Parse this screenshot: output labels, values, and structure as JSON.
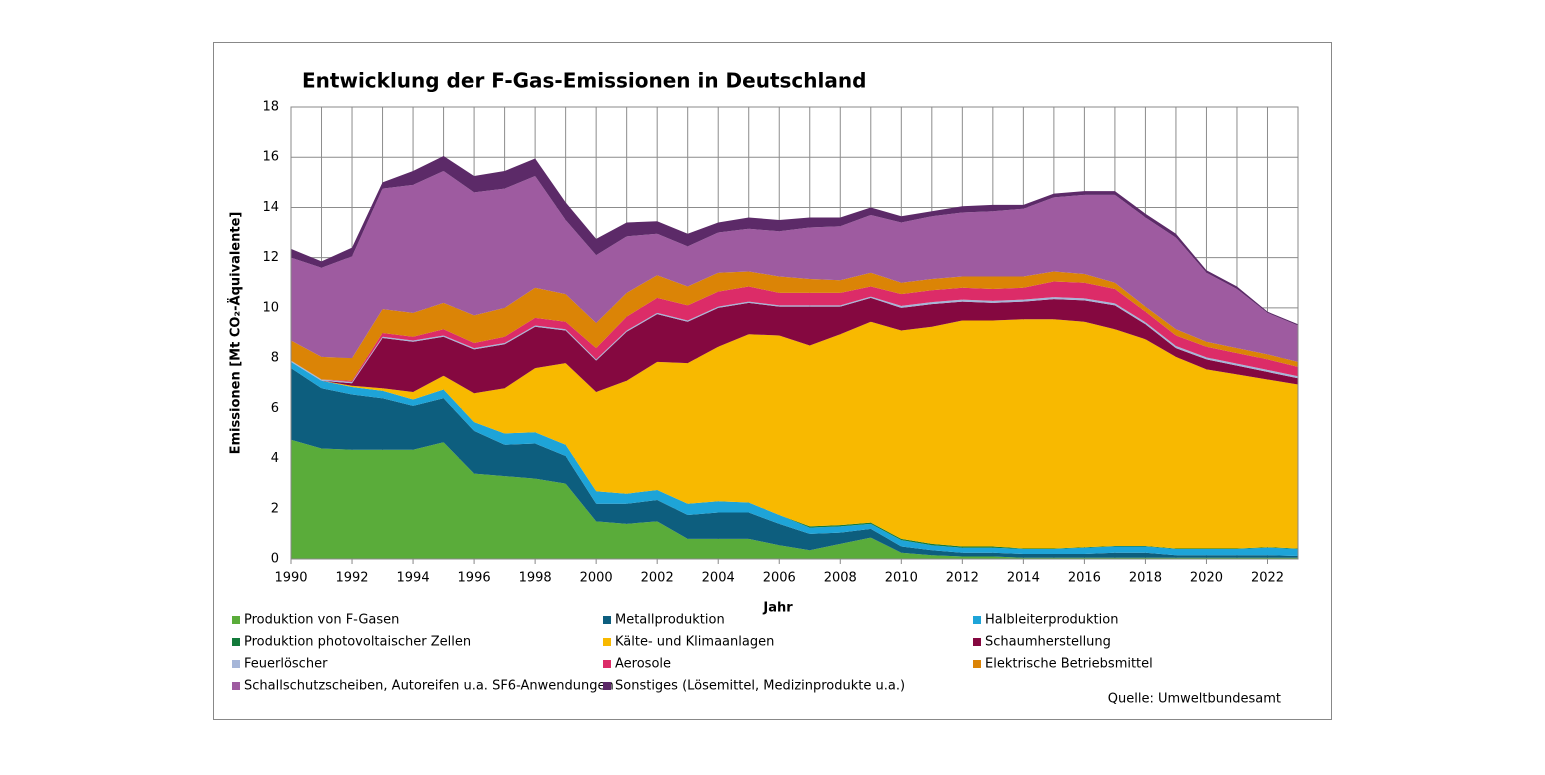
{
  "chart_data": {
    "type": "stacked-area",
    "title": "Entwicklung der F-Gas-Emissionen in Deutschland",
    "x_label": "Jahr",
    "y_label": "Emissionen [Mt CO₂-Äquivalente]",
    "source": "Quelle: Umweltbundesamt",
    "x": [
      1990,
      1991,
      1992,
      1993,
      1994,
      1995,
      1996,
      1997,
      1998,
      1999,
      2000,
      2001,
      2002,
      2003,
      2004,
      2005,
      2006,
      2007,
      2008,
      2009,
      2010,
      2011,
      2012,
      2013,
      2014,
      2015,
      2016,
      2017,
      2018,
      2019,
      2020,
      2021,
      2022,
      2023
    ],
    "xlim": [
      1990,
      2023
    ],
    "xticks": [
      1990,
      1992,
      1994,
      1996,
      1998,
      2000,
      2002,
      2004,
      2006,
      2008,
      2010,
      2012,
      2014,
      2016,
      2018,
      2020,
      2022
    ],
    "ylim": [
      0,
      18
    ],
    "yticks": [
      0,
      2,
      4,
      6,
      8,
      10,
      12,
      14,
      16,
      18
    ],
    "grid": true,
    "series": [
      {
        "name": "Produktion von F-Gasen",
        "color": "#5aac3a",
        "values": [
          4.75,
          4.4,
          4.35,
          4.35,
          4.35,
          4.65,
          3.4,
          3.3,
          3.2,
          3.0,
          1.5,
          1.4,
          1.5,
          0.8,
          0.8,
          0.8,
          0.55,
          0.35,
          0.6,
          0.85,
          0.25,
          0.15,
          0.1,
          0.1,
          0.05,
          0.05,
          0.05,
          0.05,
          0.05,
          0.05,
          0.05,
          0.05,
          0.05,
          0.05
        ]
      },
      {
        "name": "Metallproduktion",
        "color": "#0d5e7e",
        "values": [
          2.85,
          2.4,
          2.2,
          2.05,
          1.75,
          1.75,
          1.7,
          1.25,
          1.4,
          1.1,
          0.7,
          0.8,
          0.85,
          0.95,
          1.05,
          1.05,
          0.85,
          0.65,
          0.45,
          0.35,
          0.25,
          0.2,
          0.15,
          0.15,
          0.15,
          0.15,
          0.15,
          0.2,
          0.2,
          0.1,
          0.1,
          0.1,
          0.1,
          0.07
        ]
      },
      {
        "name": "Halbleiterproduktion",
        "color": "#1ea4d8",
        "values": [
          0.25,
          0.3,
          0.3,
          0.3,
          0.25,
          0.35,
          0.35,
          0.45,
          0.45,
          0.45,
          0.5,
          0.4,
          0.4,
          0.45,
          0.45,
          0.4,
          0.35,
          0.25,
          0.25,
          0.2,
          0.25,
          0.2,
          0.2,
          0.2,
          0.2,
          0.2,
          0.25,
          0.25,
          0.25,
          0.25,
          0.25,
          0.25,
          0.3,
          0.28
        ]
      },
      {
        "name": "Produktion photovoltaischer Zellen",
        "color": "#127a3a",
        "values": [
          0,
          0,
          0,
          0,
          0,
          0,
          0,
          0,
          0,
          0,
          0,
          0,
          0,
          0,
          0,
          0,
          0,
          0.05,
          0.05,
          0.05,
          0.05,
          0.05,
          0.05,
          0.05,
          0.02,
          0.02,
          0.02,
          0.02,
          0.02,
          0.02,
          0.02,
          0.02,
          0.02,
          0.02
        ]
      },
      {
        "name": "Kälte- und Klimaanlagen",
        "color": "#f8b900",
        "values": [
          0,
          0,
          0.05,
          0.1,
          0.3,
          0.55,
          1.15,
          1.8,
          2.55,
          3.25,
          3.95,
          4.5,
          5.1,
          5.6,
          6.15,
          6.7,
          7.15,
          7.2,
          7.6,
          8.0,
          8.3,
          8.65,
          9.0,
          9.0,
          9.13,
          9.13,
          8.98,
          8.63,
          8.23,
          7.63,
          7.13,
          6.93,
          6.68,
          6.53
        ]
      },
      {
        "name": "Schaumherstellung",
        "color": "#850840",
        "values": [
          0,
          0,
          0.1,
          2.0,
          2.0,
          1.55,
          1.75,
          1.75,
          1.65,
          1.3,
          1.25,
          1.95,
          1.9,
          1.65,
          1.55,
          1.25,
          1.15,
          1.55,
          1.1,
          0.95,
          0.9,
          0.9,
          0.75,
          0.7,
          0.7,
          0.8,
          0.85,
          0.95,
          0.6,
          0.35,
          0.4,
          0.35,
          0.3,
          0.25
        ]
      },
      {
        "name": "Feuerlöscher",
        "color": "#a6b6d8",
        "values": [
          0.05,
          0.05,
          0.05,
          0.05,
          0.05,
          0.05,
          0.05,
          0.05,
          0.05,
          0.05,
          0.05,
          0.05,
          0.05,
          0.05,
          0.05,
          0.05,
          0.05,
          0.05,
          0.05,
          0.05,
          0.08,
          0.08,
          0.08,
          0.08,
          0.08,
          0.08,
          0.08,
          0.08,
          0.08,
          0.08,
          0.08,
          0.08,
          0.08,
          0.08
        ]
      },
      {
        "name": "Aerosole",
        "color": "#dc2c68",
        "values": [
          0,
          0,
          0.05,
          0.15,
          0.15,
          0.25,
          0.2,
          0.25,
          0.3,
          0.3,
          0.45,
          0.55,
          0.6,
          0.6,
          0.6,
          0.6,
          0.5,
          0.5,
          0.5,
          0.4,
          0.47,
          0.47,
          0.47,
          0.47,
          0.47,
          0.62,
          0.62,
          0.57,
          0.42,
          0.42,
          0.42,
          0.42,
          0.42,
          0.37
        ]
      },
      {
        "name": "Elektrische Betriebsmittel",
        "color": "#db8406",
        "values": [
          0.8,
          0.9,
          0.9,
          0.95,
          0.95,
          1.05,
          1.1,
          1.15,
          1.2,
          1.1,
          1.0,
          0.95,
          0.9,
          0.75,
          0.75,
          0.6,
          0.65,
          0.55,
          0.5,
          0.55,
          0.45,
          0.45,
          0.45,
          0.5,
          0.45,
          0.4,
          0.35,
          0.25,
          0.2,
          0.25,
          0.2,
          0.2,
          0.2,
          0.2
        ]
      },
      {
        "name": "Schallschutzscheiben, Autoreifen u.a. SF6-Anwendungen",
        "color": "#9e5ba0",
        "values": [
          3.3,
          3.55,
          4.05,
          4.8,
          5.1,
          5.25,
          4.9,
          4.75,
          4.45,
          2.95,
          2.7,
          2.25,
          1.65,
          1.6,
          1.6,
          1.7,
          1.8,
          2.05,
          2.15,
          2.3,
          2.4,
          2.5,
          2.55,
          2.6,
          2.7,
          2.95,
          3.15,
          3.5,
          3.55,
          3.65,
          2.75,
          2.35,
          1.65,
          1.45
        ]
      },
      {
        "name": "Sonstiges (Lösemittel, Medizinprodukte u.a.)",
        "color": "#5c2a68",
        "values": [
          0.35,
          0.25,
          0.35,
          0.25,
          0.55,
          0.6,
          0.65,
          0.7,
          0.7,
          0.7,
          0.65,
          0.55,
          0.5,
          0.5,
          0.4,
          0.45,
          0.45,
          0.4,
          0.35,
          0.3,
          0.25,
          0.2,
          0.25,
          0.25,
          0.15,
          0.15,
          0.15,
          0.15,
          0.15,
          0.15,
          0.1,
          0.1,
          0.05,
          0.05
        ]
      }
    ]
  }
}
